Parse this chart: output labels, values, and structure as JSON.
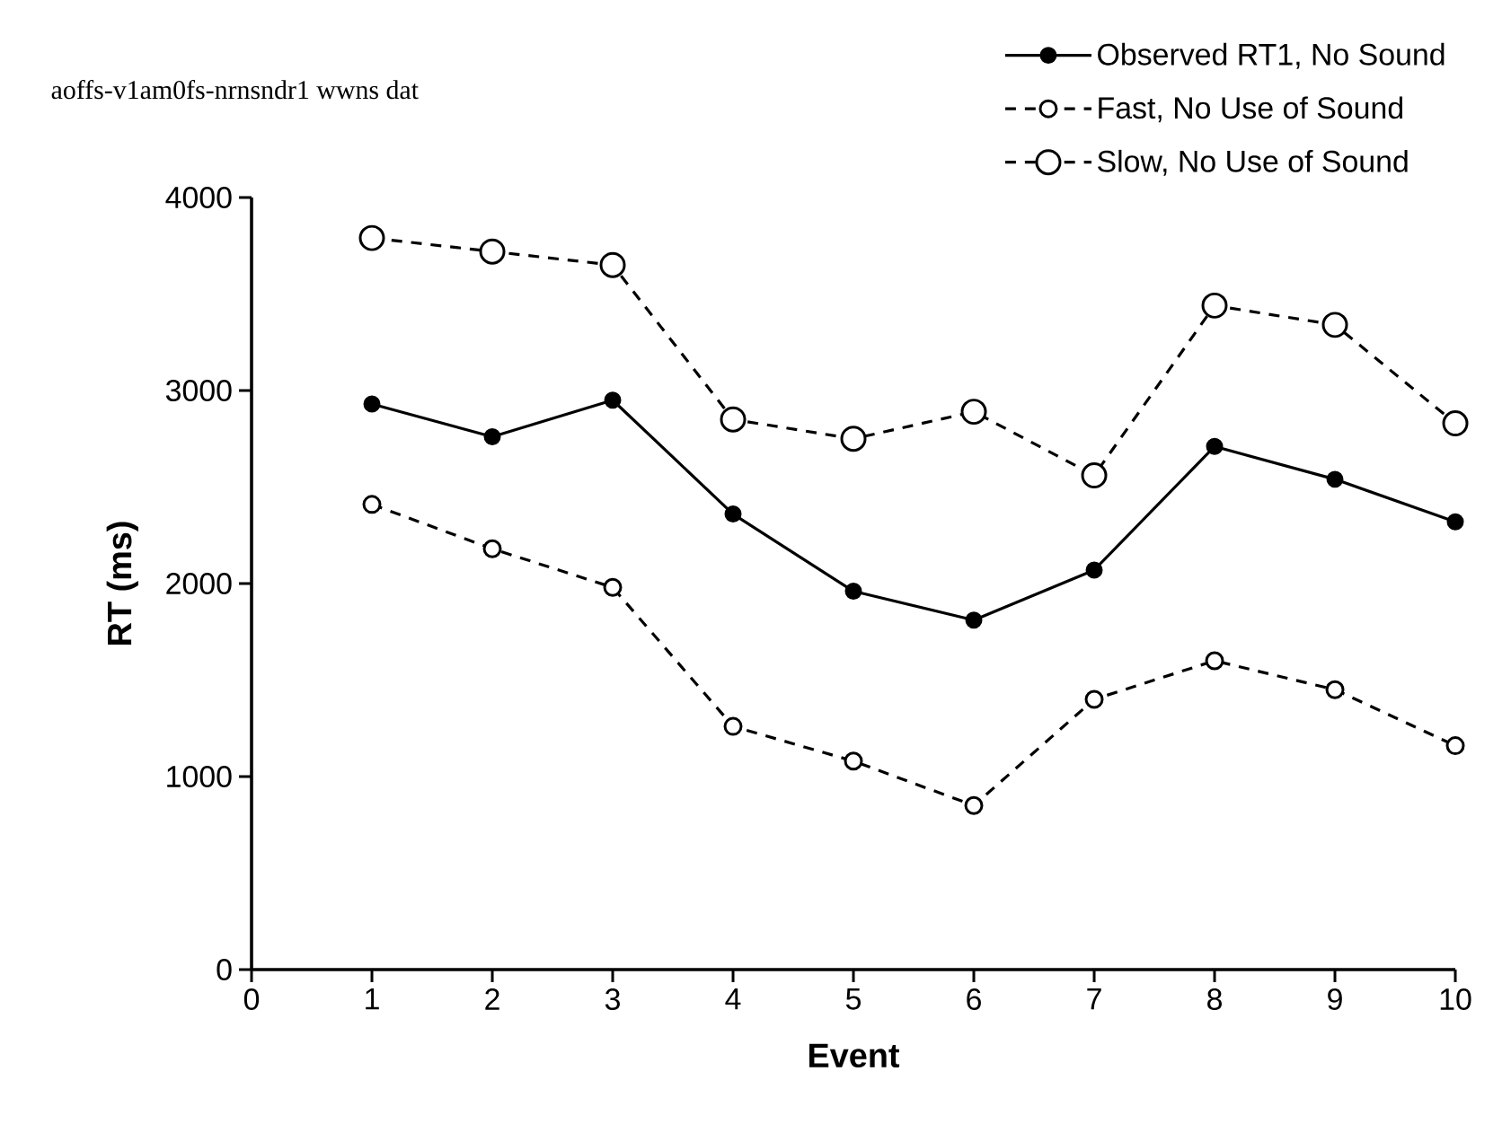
{
  "chart_data": {
    "type": "line",
    "annotations": [
      "aoffs-v1am0fs-nrnsndr1 wwns dat"
    ],
    "xlabel": "Event",
    "ylabel": "RT (ms)",
    "x": [
      1,
      2,
      3,
      4,
      5,
      6,
      7,
      8,
      9,
      10
    ],
    "series": [
      {
        "name": "Observed RT1, No Sound",
        "color": "#000000",
        "line_style": "solid",
        "values": [
          2930,
          2760,
          2950,
          2360,
          1960,
          1810,
          2070,
          2710,
          2540,
          2320
        ]
      },
      {
        "name": "Fast, No Use of Sound",
        "color": "#000000",
        "line_style": "dashed",
        "values": [
          2410,
          2180,
          1980,
          1260,
          1080,
          850,
          1400,
          1600,
          1450,
          1160
        ]
      },
      {
        "name": "Slow, No Use of Sound",
        "color": "#000000",
        "line_style": "dashed",
        "values": [
          3790,
          3720,
          3650,
          2850,
          2750,
          2890,
          2560,
          3440,
          3340,
          2830
        ]
      }
    ],
    "xlim": [
      0,
      10
    ],
    "xticks": [
      0,
      1,
      2,
      3,
      4,
      5,
      6,
      7,
      8,
      9,
      10
    ],
    "ylim": [
      0,
      4000
    ],
    "yticks": [
      0,
      1000,
      2000,
      3000,
      4000
    ],
    "marker": "circle",
    "legend": "top right",
    "grid": false
  }
}
